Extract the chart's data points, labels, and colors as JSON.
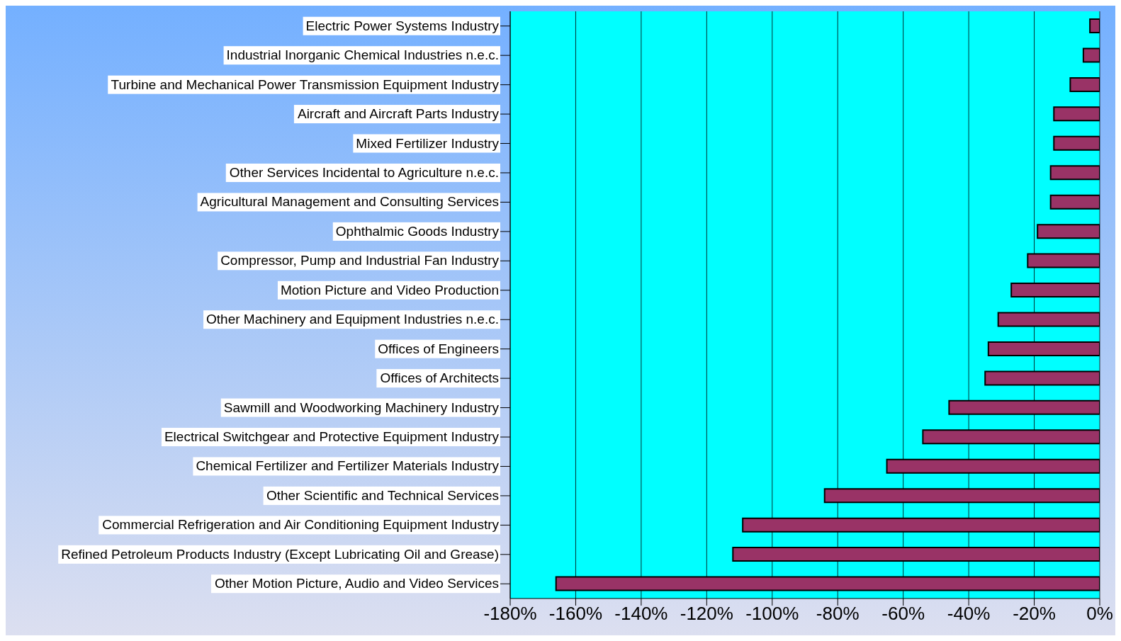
{
  "chart_data": {
    "type": "bar",
    "orientation": "horizontal",
    "categories": [
      "Electric Power Systems Industry",
      "Industrial Inorganic Chemical Industries n.e.c.",
      "Turbine and Mechanical Power Transmission Equipment Industry",
      "Aircraft and Aircraft Parts Industry",
      "Mixed Fertilizer Industry",
      "Other Services Incidental to Agriculture n.e.c.",
      "Agricultural Management and Consulting Services",
      "Ophthalmic Goods Industry",
      "Compressor, Pump and Industrial Fan Industry",
      "Motion Picture and Video Production",
      "Other Machinery and Equipment Industries n.e.c.",
      "Offices of Engineers",
      "Offices of Architects",
      "Sawmill and Woodworking Machinery Industry",
      "Electrical Switchgear and Protective Equipment Industry",
      "Chemical Fertilizer and Fertilizer Materials Industry",
      "Other Scientific and Technical Services",
      "Commercial Refrigeration and Air Conditioning Equipment Industry",
      "Refined Petroleum Products Industry (Except Lubricating Oil and Grease)",
      "Other Motion Picture, Audio and Video Services"
    ],
    "values": [
      -3,
      -5,
      -9,
      -14,
      -14,
      -15,
      -15,
      -19,
      -22,
      -27,
      -31,
      -34,
      -35,
      -46,
      -54,
      -65,
      -84,
      -109,
      -112,
      -166
    ],
    "color": "#993366",
    "xlim": [
      -180,
      0
    ],
    "xticks": [
      {
        "value": -180,
        "label": "-180%"
      },
      {
        "value": -160,
        "label": "-160%"
      },
      {
        "value": -140,
        "label": "-140%"
      },
      {
        "value": -120,
        "label": "-120%"
      },
      {
        "value": -100,
        "label": "-100%"
      },
      {
        "value": -80,
        "label": "-80%"
      },
      {
        "value": -60,
        "label": "-60%"
      },
      {
        "value": -40,
        "label": "-40%"
      },
      {
        "value": -20,
        "label": "-20%"
      },
      {
        "value": 0,
        "label": "0%"
      }
    ],
    "grid": "x",
    "legend": false
  }
}
